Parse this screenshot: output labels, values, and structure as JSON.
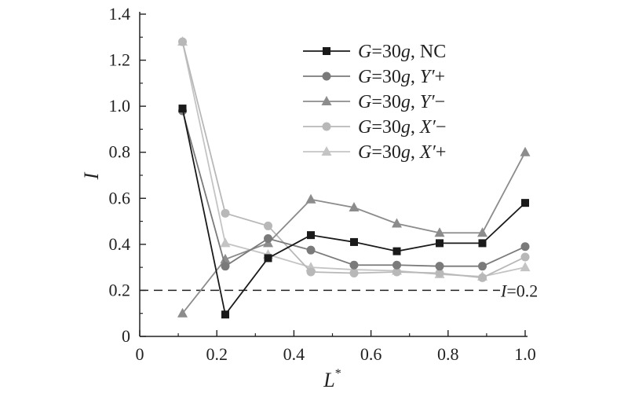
{
  "chart_data": {
    "type": "line",
    "title": "",
    "xlabel": "L",
    "xlabel_sup": "*",
    "ylabel": "I",
    "xlim": [
      0,
      1.0
    ],
    "ylim": [
      0,
      1.4
    ],
    "x_ticks": [
      "0",
      "0.2",
      "0.4",
      "0.6",
      "0.8",
      "1.0"
    ],
    "y_ticks": [
      "0",
      "0.2",
      "0.4",
      "0.6",
      "0.8",
      "1.0",
      "1.2",
      "1.4"
    ],
    "x": [
      0.111,
      0.222,
      0.333,
      0.444,
      0.556,
      0.667,
      0.778,
      0.889,
      1.0
    ],
    "legend_position": "top-right",
    "grid": false,
    "series": [
      {
        "name": "G=30g, NC",
        "name_parts": [
          "G",
          "=30",
          "g",
          ", NC"
        ],
        "marker": "square",
        "color": "#1a1a1a",
        "values": [
          0.99,
          0.095,
          0.34,
          0.44,
          0.41,
          0.37,
          0.405,
          0.405,
          0.58
        ]
      },
      {
        "name": "G=30g, Y′+",
        "name_parts": [
          "G",
          "=30",
          "g",
          ", ",
          "Y′",
          "+"
        ],
        "marker": "circle",
        "color": "#7a7a7a",
        "values": [
          0.98,
          0.305,
          0.425,
          0.375,
          0.31,
          0.31,
          0.305,
          0.305,
          0.39
        ]
      },
      {
        "name": "G=30g, Y′−",
        "name_parts": [
          "G",
          "=30",
          "g",
          ", ",
          "Y′",
          "−"
        ],
        "marker": "triangle",
        "color": "#8c8c8c",
        "values": [
          0.1,
          0.335,
          0.405,
          0.595,
          0.56,
          0.49,
          0.45,
          0.45,
          0.8
        ]
      },
      {
        "name": "G=30g, X′−",
        "name_parts": [
          "G",
          "=30",
          "g",
          ", ",
          "X′",
          "−"
        ],
        "marker": "circle",
        "color": "#b8b8b8",
        "values": [
          1.28,
          0.535,
          0.48,
          0.28,
          0.275,
          0.28,
          0.275,
          0.255,
          0.345
        ]
      },
      {
        "name": "G=30g, X′+",
        "name_parts": [
          "G",
          "=30",
          "g",
          ", ",
          "X′",
          "+"
        ],
        "marker": "triangle",
        "color": "#c4c4c4",
        "values": [
          1.28,
          0.405,
          0.355,
          0.3,
          0.29,
          0.285,
          0.27,
          0.26,
          0.3
        ]
      }
    ],
    "reference_line": {
      "y": 0.2,
      "label_var": "I",
      "label_rest": "=0.2",
      "style": "dashed"
    }
  }
}
